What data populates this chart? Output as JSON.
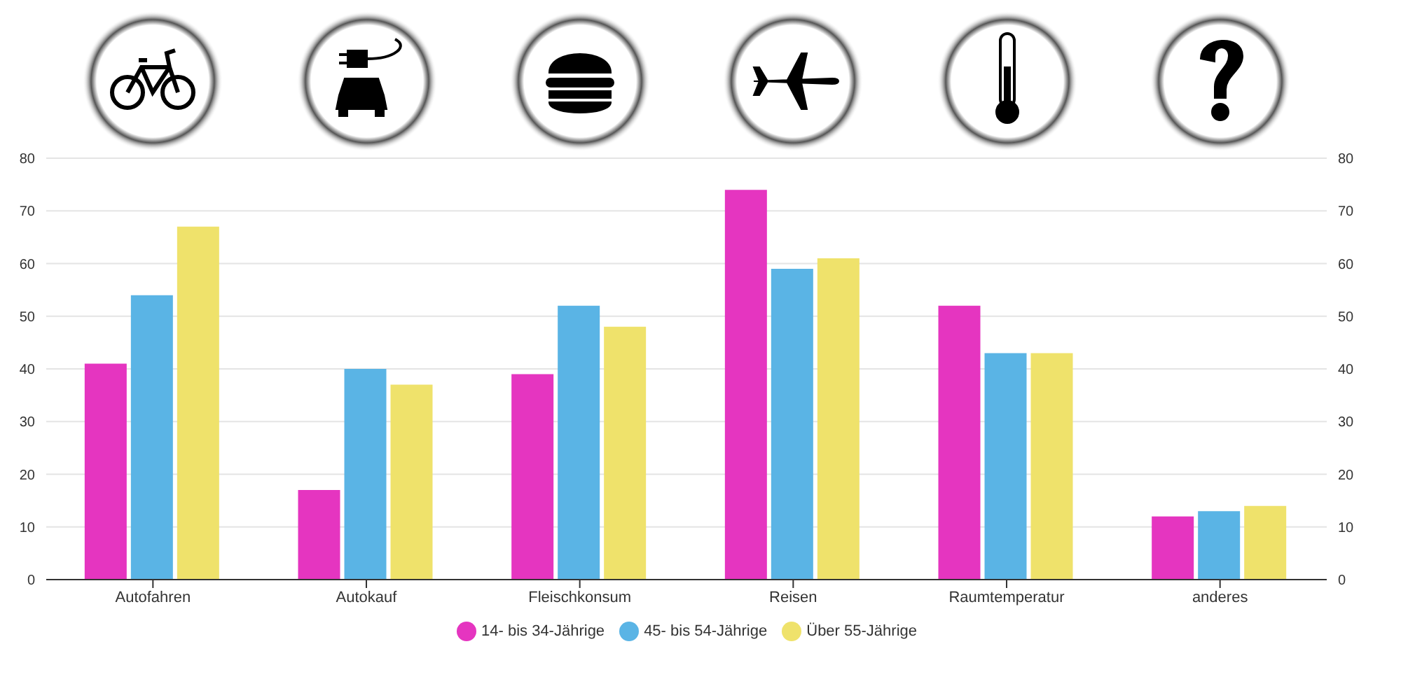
{
  "chart_data": {
    "type": "bar",
    "categories": [
      "Autofahren",
      "Autokauf",
      "Fleischkonsum",
      "Reisen",
      "Raumtemperatur",
      "anderes"
    ],
    "series": [
      {
        "name": "14- bis 34-Jährige",
        "color": "#e535c0",
        "values": [
          41,
          17,
          39,
          74,
          52,
          12
        ]
      },
      {
        "name": "45- bis 54-Jährige",
        "color": "#5ab4e5",
        "values": [
          54,
          40,
          52,
          59,
          43,
          13
        ]
      },
      {
        "name": "Über 55-Jährige",
        "color": "#efe26b",
        "values": [
          67,
          37,
          48,
          61,
          43,
          14
        ]
      }
    ],
    "ylim": [
      0,
      80
    ],
    "yticks": [
      0,
      10,
      20,
      30,
      40,
      50,
      60,
      70,
      80
    ],
    "y2lim": [
      0,
      80
    ],
    "y2ticks": [
      0,
      10,
      20,
      30,
      40,
      50,
      60,
      70,
      80
    ],
    "grid": "y",
    "legend": "bottom"
  }
}
